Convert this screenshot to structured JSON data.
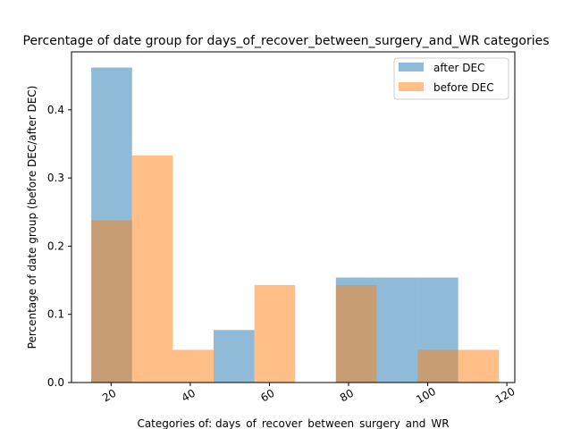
{
  "chart_data": {
    "type": "bar",
    "title": "Percentage of date group for days_of_recover_between_surgery_and_WR categories",
    "xlabel": "Categories of: days_of_recover_between_surgery_and_WR",
    "ylabel": "Percentage of date group (before DEC/after DEC)",
    "xlim": [
      10,
      122
    ],
    "ylim": [
      0,
      0.485
    ],
    "xticks": [
      20,
      40,
      60,
      80,
      100,
      120
    ],
    "xtick_labels": [
      "20",
      "40",
      "60",
      "80",
      "100",
      "120"
    ],
    "yticks": [
      0.0,
      0.1,
      0.2,
      0.3,
      0.4
    ],
    "ytick_labels": [
      "0.0",
      "0.1",
      "0.2",
      "0.3",
      "0.4"
    ],
    "legend_position": "top-right",
    "series": [
      {
        "name": "after DEC",
        "color": "#1f77b4",
        "opacity": 0.5,
        "bins": [
          {
            "x0": 15.0,
            "x1": 25.3,
            "value": 0.462
          },
          {
            "x0": 25.3,
            "x1": 35.6,
            "value": 0.0
          },
          {
            "x0": 35.6,
            "x1": 45.9,
            "value": 0.0
          },
          {
            "x0": 45.9,
            "x1": 56.2,
            "value": 0.077
          },
          {
            "x0": 56.2,
            "x1": 66.5,
            "value": 0.0
          },
          {
            "x0": 66.5,
            "x1": 76.8,
            "value": 0.0
          },
          {
            "x0": 76.8,
            "x1": 87.1,
            "value": 0.154
          },
          {
            "x0": 87.1,
            "x1": 97.4,
            "value": 0.154
          },
          {
            "x0": 97.4,
            "x1": 107.7,
            "value": 0.154
          }
        ]
      },
      {
        "name": "before DEC",
        "color": "#ff7f0e",
        "opacity": 0.5,
        "bins": [
          {
            "x0": 15.0,
            "x1": 25.3,
            "value": 0.238
          },
          {
            "x0": 25.3,
            "x1": 35.6,
            "value": 0.333
          },
          {
            "x0": 35.6,
            "x1": 45.9,
            "value": 0.048
          },
          {
            "x0": 45.9,
            "x1": 56.2,
            "value": 0.0
          },
          {
            "x0": 56.2,
            "x1": 66.5,
            "value": 0.143
          },
          {
            "x0": 66.5,
            "x1": 76.8,
            "value": 0.0
          },
          {
            "x0": 76.8,
            "x1": 87.1,
            "value": 0.143
          },
          {
            "x0": 87.1,
            "x1": 97.4,
            "value": 0.0
          },
          {
            "x0": 97.4,
            "x1": 107.7,
            "value": 0.048
          },
          {
            "x0": 107.7,
            "x1": 118.0,
            "value": 0.048
          }
        ]
      }
    ]
  }
}
